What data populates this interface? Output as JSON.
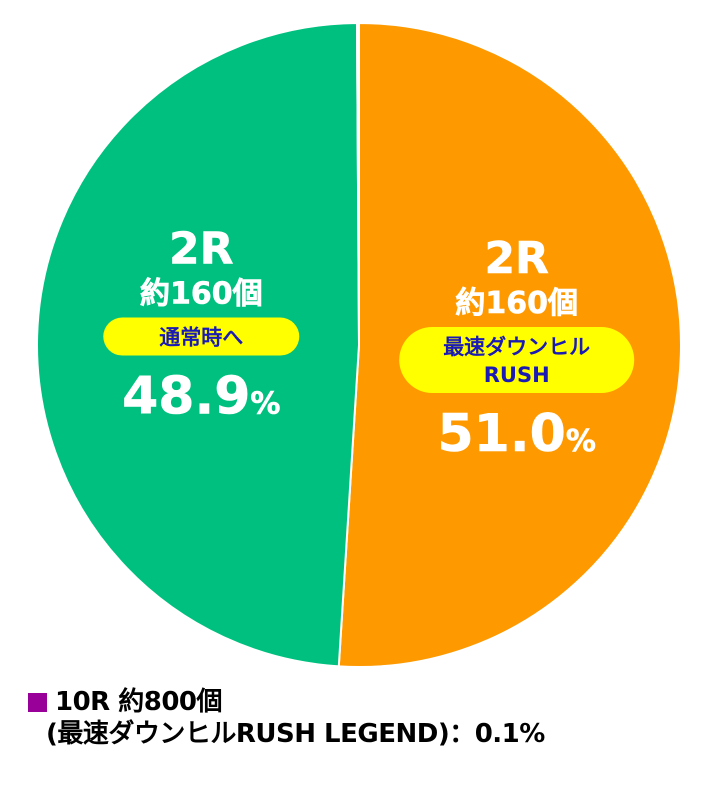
{
  "chart_data": {
    "type": "pie",
    "slices": [
      {
        "round": "2R",
        "payout": "約160個",
        "result": "最速ダウンヒルRUSH",
        "result_lines": [
          "最速ダウンヒル",
          "RUSH"
        ],
        "value": 51.0,
        "value_label": "51.0",
        "unit": "%",
        "color": "#ff9900"
      },
      {
        "round": "2R",
        "payout": "約160個",
        "result": "通常時へ",
        "result_lines": [
          "通常時へ"
        ],
        "value": 48.9,
        "value_label": "48.9",
        "unit": "%",
        "color": "#00c080"
      },
      {
        "round": "10R",
        "payout": "約800個",
        "result": "最速ダウンヒルRUSH LEGEND",
        "value": 0.1,
        "color": "#990099"
      }
    ]
  },
  "legend": {
    "line1": "10R 約800個",
    "line2": "(最速ダウンヒルRUSH LEGEND)：0.1%"
  }
}
